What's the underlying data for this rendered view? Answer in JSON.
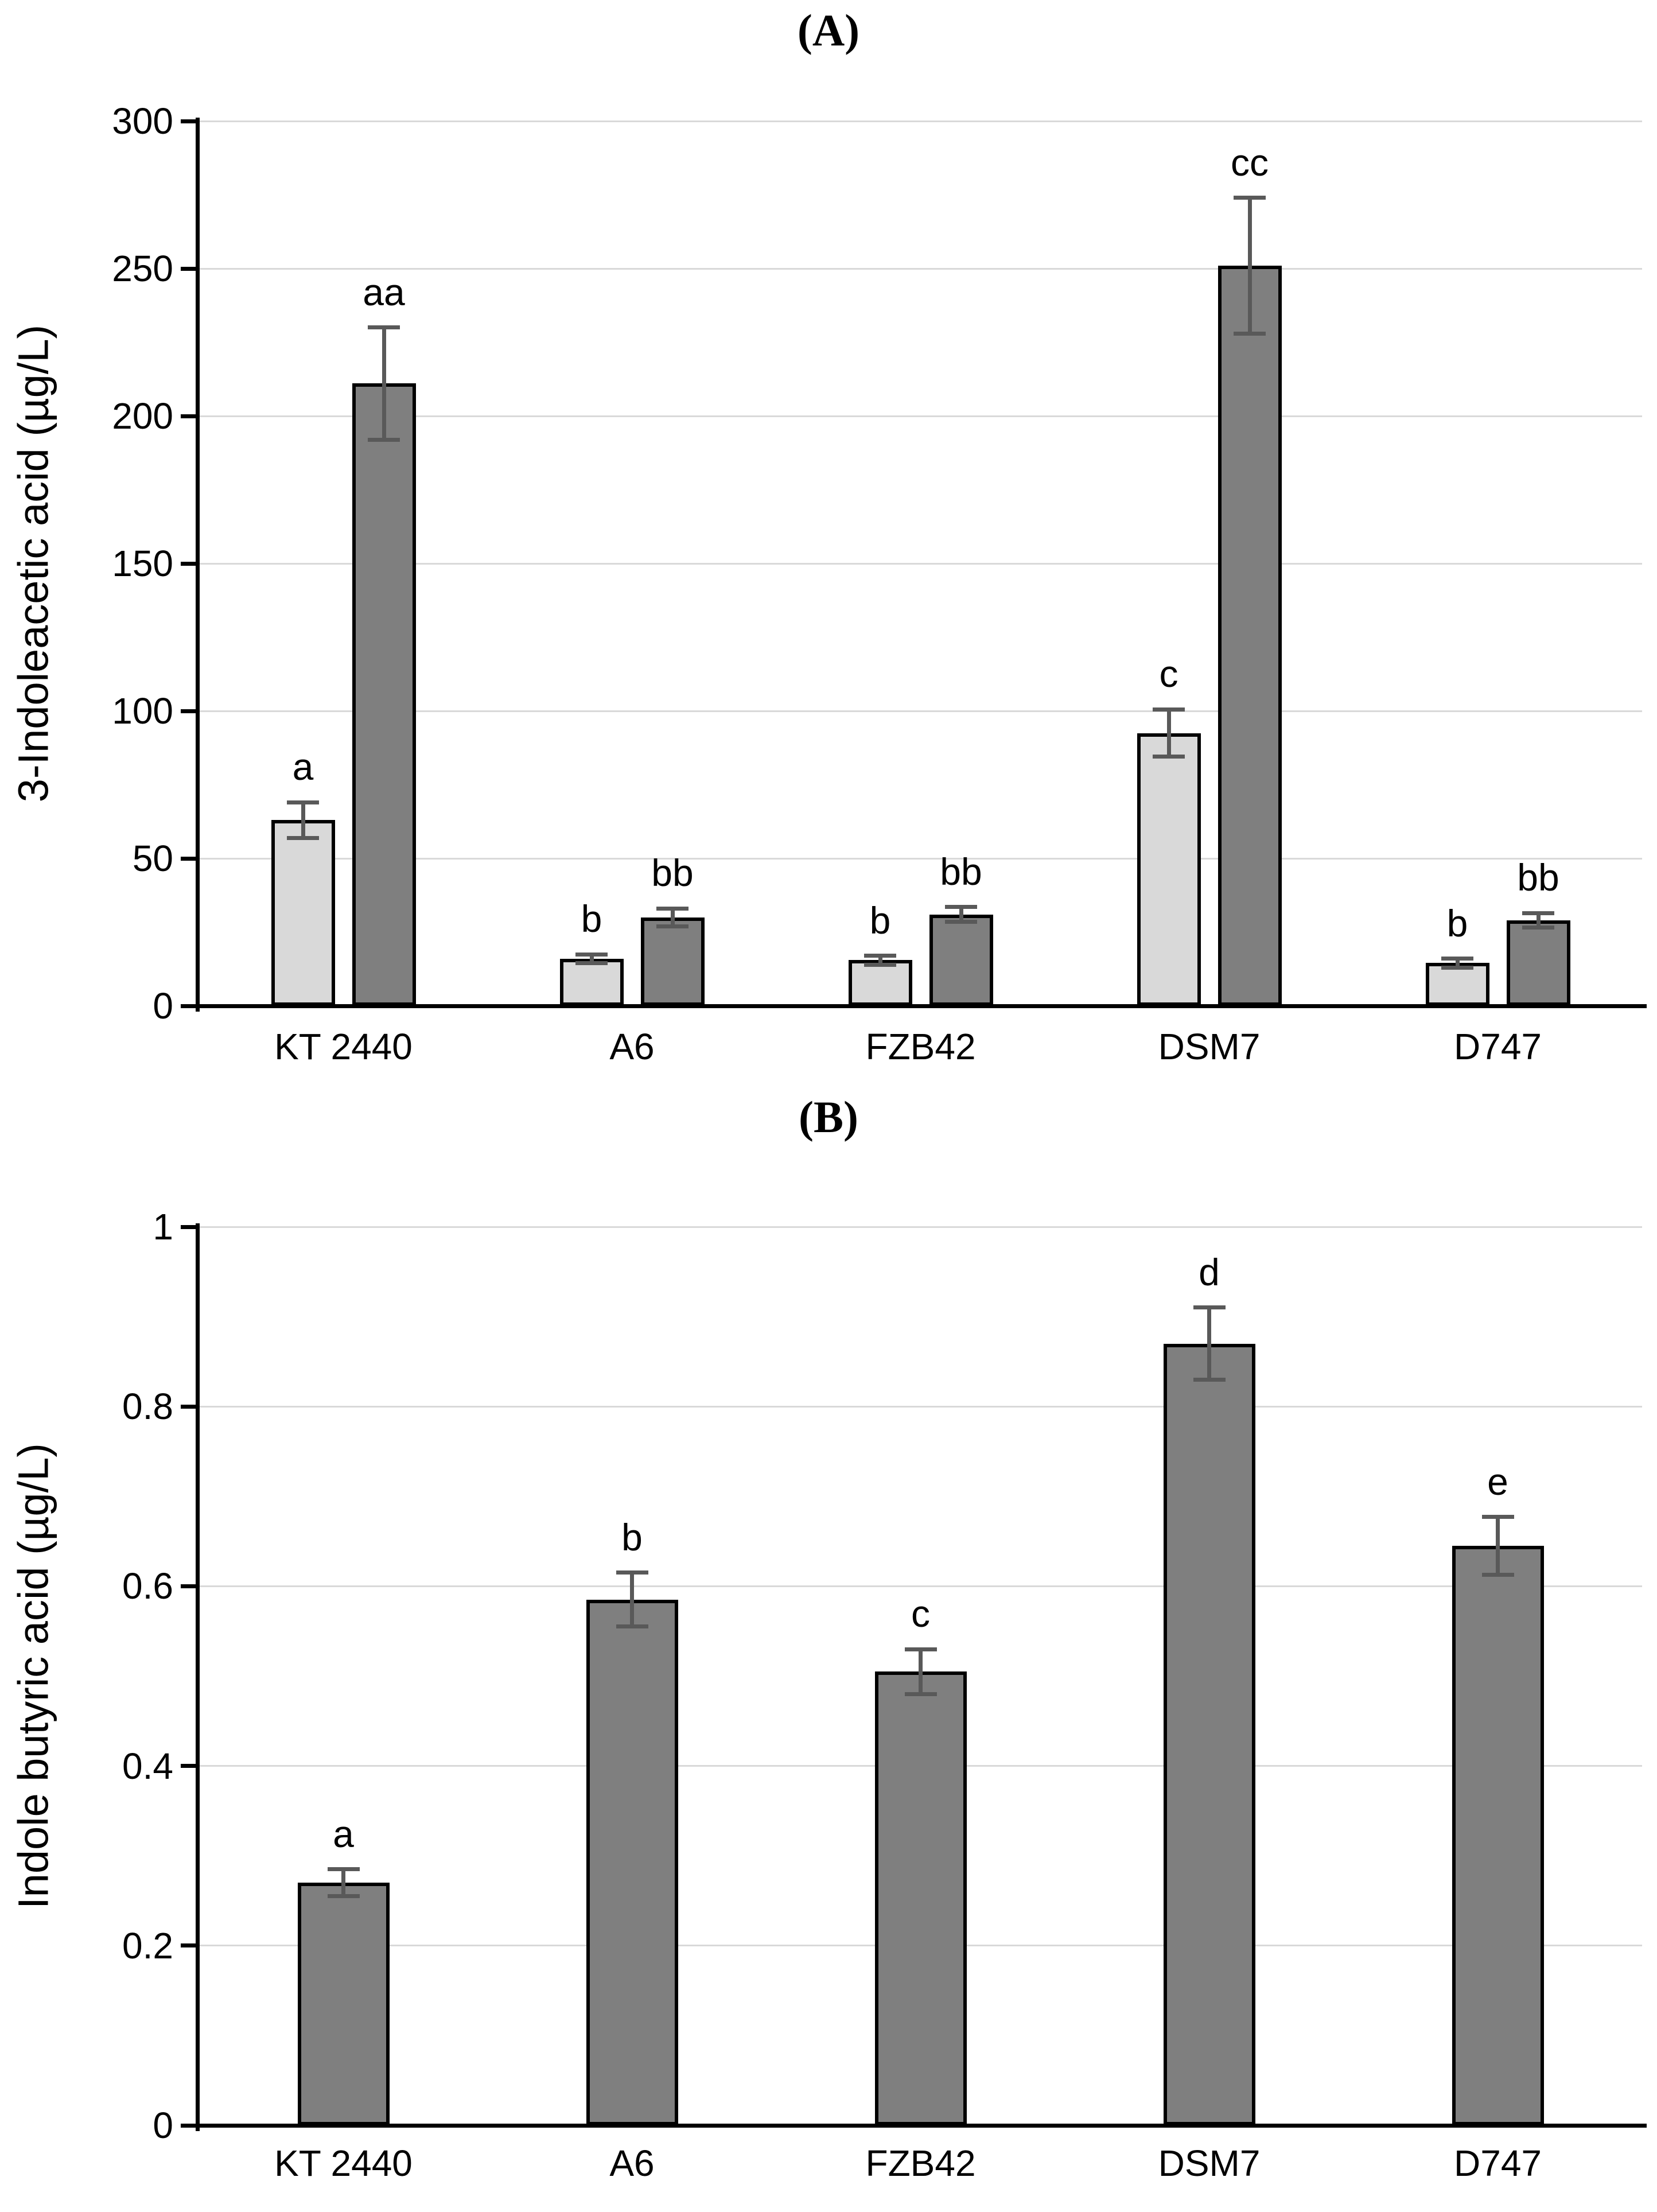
{
  "chart_data": [
    {
      "type": "bar",
      "title": "(A)",
      "ylabel": "3-Indoleacetic acid (µg/L)",
      "xlabel": "",
      "categories": [
        "KT 2440",
        "A6",
        "FZB42",
        "DSM7",
        "D747"
      ],
      "ylim": [
        0,
        300
      ],
      "yticks": [
        0,
        50,
        100,
        150,
        200,
        250,
        300
      ],
      "ytick_labels": [
        "0",
        "50",
        "100",
        "150",
        "200",
        "250",
        "300"
      ],
      "grid": true,
      "legend": "none",
      "series": [
        {
          "name": "light-gray-series",
          "color": "#d9d9d9",
          "values": [
            63,
            16,
            15.5,
            92.5,
            14.5
          ],
          "errors": [
            6,
            1.5,
            1.5,
            8,
            1.5
          ],
          "sig_letters": [
            "a",
            "b",
            "b",
            "c",
            "b"
          ]
        },
        {
          "name": "dark-gray-series",
          "color": "#7f7f7f",
          "values": [
            211,
            30,
            31,
            251,
            29
          ],
          "errors": [
            19,
            3,
            2.5,
            23,
            2.5
          ],
          "sig_letters": [
            "aa",
            "bb",
            "bb",
            "cc",
            "bb"
          ]
        }
      ]
    },
    {
      "type": "bar",
      "title": "(B)",
      "ylabel": "Indole butyric acid (µg/L)",
      "xlabel": "",
      "categories": [
        "KT 2440",
        "A6",
        "FZB42",
        "DSM7",
        "D747"
      ],
      "ylim": [
        0,
        1
      ],
      "yticks": [
        0,
        0.2,
        0.4,
        0.6,
        0.8,
        1
      ],
      "ytick_labels": [
        "0",
        "0.2",
        "0.4",
        "0.6",
        "0.8",
        "1"
      ],
      "grid": true,
      "legend": "none",
      "series": [
        {
          "name": "dark-gray-series",
          "color": "#7f7f7f",
          "values": [
            0.27,
            0.585,
            0.505,
            0.87,
            0.645
          ],
          "errors": [
            0.015,
            0.03,
            0.025,
            0.04,
            0.032
          ],
          "sig_letters": [
            "a",
            "b",
            "c",
            "d",
            "e"
          ]
        }
      ]
    }
  ],
  "style_colors": {
    "bar_light": "#d9d9d9",
    "bar_dark": "#7f7f7f",
    "error_bar": "#595959",
    "gridline": "#d9d9d9",
    "axis": "#000000"
  }
}
